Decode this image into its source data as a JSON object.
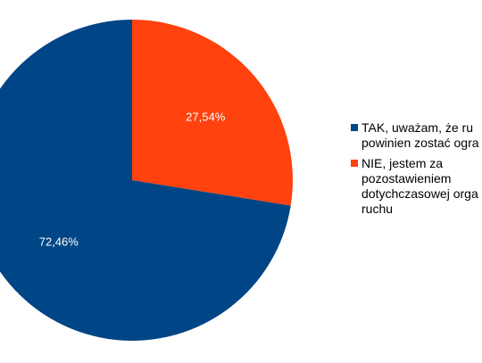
{
  "chart_data": {
    "type": "pie",
    "series": [
      {
        "name": "TAK, uważam, że ru powinien zostać ogra",
        "color": "#004586",
        "values": [
          72.46
        ],
        "value_labels": [
          "72,46%"
        ]
      },
      {
        "name": "NIE, jestem za pozostawieniem dotychczasowej orga ruchu",
        "color": "#ff420e",
        "values": [
          27.54
        ],
        "value_labels": [
          "27,54%"
        ]
      }
    ]
  }
}
